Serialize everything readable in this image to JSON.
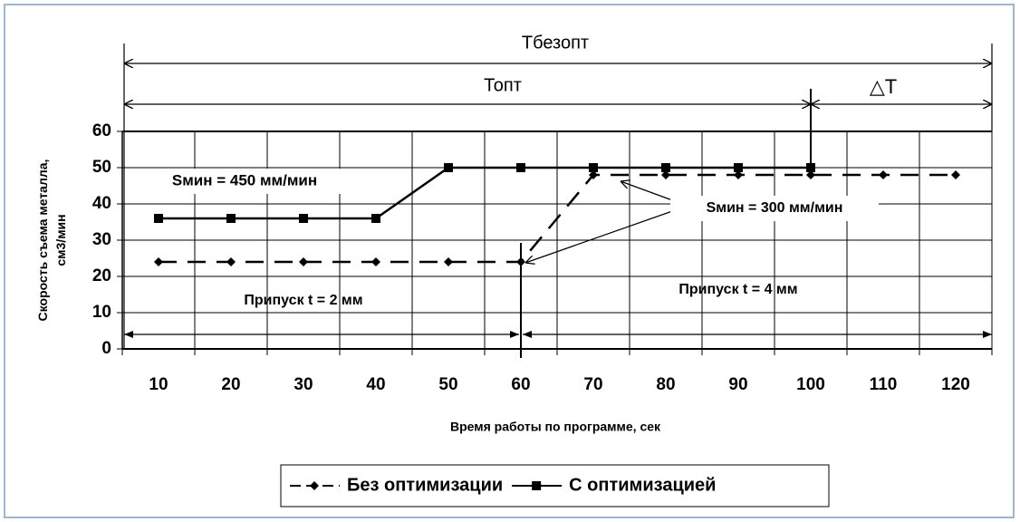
{
  "chart_data": {
    "type": "line",
    "categories": [
      "10",
      "20",
      "30",
      "40",
      "50",
      "60",
      "70",
      "80",
      "90",
      "100",
      "110",
      "120"
    ],
    "series": [
      {
        "name": "Без оптимизации",
        "color": "#000000",
        "dash": true,
        "marker": "diamond",
        "values": [
          24,
          24,
          24,
          24,
          24,
          24,
          48,
          48,
          48,
          48,
          48,
          48
        ]
      },
      {
        "name": "С оптимизацией",
        "color": "#000000",
        "dash": false,
        "marker": "square",
        "values": [
          36,
          36,
          36,
          36,
          50,
          50,
          50,
          50,
          50,
          50,
          null,
          null
        ]
      }
    ],
    "ylim": [
      0,
      60
    ],
    "yticks": [
      0,
      10,
      20,
      30,
      40,
      50,
      60
    ],
    "grid": true,
    "y_label": [
      "Скорость съема металла,",
      "см3/мин"
    ],
    "x_label": "Время работы по программе, сек",
    "annotations": [
      "Тбезопт",
      "Топт",
      "△T",
      "Sмин =  450 мм/мин",
      "Sмин =  300 мм/мин",
      "Припуск  t = 2 мм",
      "Припуск  t = 4 мм"
    ],
    "legend": "bottom"
  }
}
